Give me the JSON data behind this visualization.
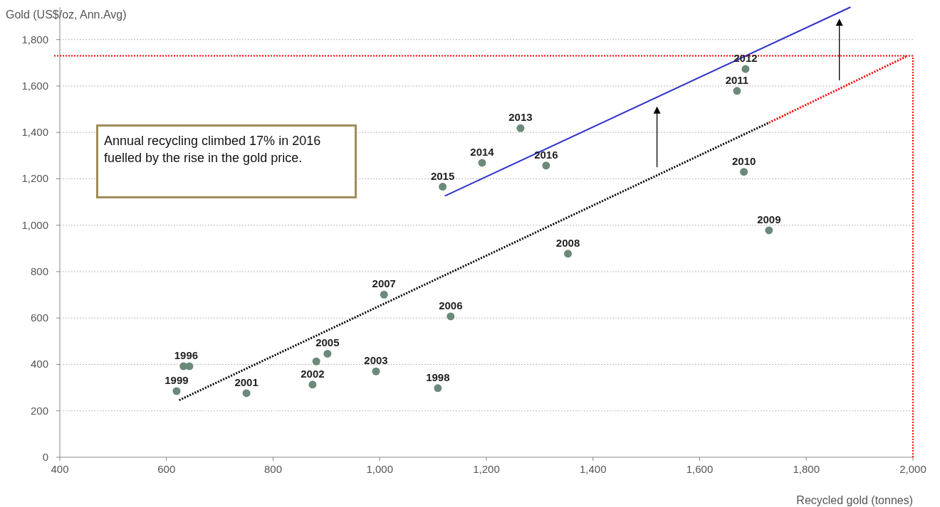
{
  "chart_data": {
    "type": "scatter",
    "xlabel": "Recycled gold (tonnes)",
    "ylabel": "Gold (US$/oz, Ann.Avg)",
    "xlim": [
      400,
      2000
    ],
    "xticks": [
      400,
      600,
      800,
      {
        "value": 1000,
        "label": "1,000"
      },
      {
        "value": 1200,
        "label": "1,200"
      },
      {
        "value": 1400,
        "label": "1,400"
      },
      {
        "value": 1600,
        "label": "1,600"
      },
      {
        "value": 1800,
        "label": "1,800"
      },
      {
        "value": 2000,
        "label": "2,000"
      }
    ],
    "ylim": [
      0,
      1940
    ],
    "yticks": [
      0,
      200,
      400,
      600,
      800,
      {
        "value": 1000,
        "label": "1,000"
      },
      {
        "value": 1200,
        "label": "1,200"
      },
      {
        "value": 1400,
        "label": "1,400"
      },
      {
        "value": 1600,
        "label": "1,600"
      },
      {
        "value": 1800,
        "label": "1,800"
      }
    ],
    "grid": "y",
    "series": [
      {
        "color": "#6b8a7a",
        "marker": "circle",
        "x": [
          632,
          643,
          1109,
          619,
          750,
          874,
          993,
          881,
          902,
          1133,
          1008,
          1353,
          1730,
          1683,
          1670,
          1686,
          1264,
          1192,
          1118,
          1312
        ],
        "values": [
          392,
          392,
          298,
          285,
          276,
          313,
          370,
          413,
          446,
          607,
          701,
          877,
          978,
          1230,
          1579,
          1673,
          1418,
          1269,
          1166,
          1257
        ]
      },
      {
        "type": "line",
        "color": "#000000",
        "line_style": "dotted",
        "x": [
          624,
          1730
        ],
        "values": [
          246,
          1442
        ]
      },
      {
        "type": "line",
        "color": "#ff0000",
        "line_style": "dotted",
        "x": [
          1730,
          1990
        ],
        "values": [
          1442,
          1730
        ]
      },
      {
        "type": "line",
        "color": "#3333cc",
        "line_style": "solid",
        "x": [
          1122,
          1883
        ],
        "values": [
          1126,
          1940
        ]
      }
    ],
    "ref_lines": [
      {
        "axis": "y",
        "value": 1730,
        "color": "#ff0000",
        "line_style": "dotted"
      },
      {
        "axis": "x",
        "value": 2000,
        "color": "#ff0000",
        "line_style": "dotted"
      }
    ],
    "annotations": [
      {
        "text": "1996",
        "x": 637,
        "y": 392
      },
      {
        "text": "1998",
        "x": 1109,
        "y": 298
      },
      {
        "text": "1999",
        "x": 619,
        "y": 285
      },
      {
        "text": "2001",
        "x": 750,
        "y": 276
      },
      {
        "text": "2002",
        "x": 874,
        "y": 313
      },
      {
        "text": "2003",
        "x": 993,
        "y": 370
      },
      {
        "text": "2005",
        "x": 902,
        "y": 446
      },
      {
        "text": "2006",
        "x": 1133,
        "y": 607
      },
      {
        "text": "2007",
        "x": 1008,
        "y": 701
      },
      {
        "text": "2008",
        "x": 1353,
        "y": 877
      },
      {
        "text": "2009",
        "x": 1730,
        "y": 978
      },
      {
        "text": "2010",
        "x": 1683,
        "y": 1230
      },
      {
        "text": "2011",
        "x": 1670,
        "y": 1579
      },
      {
        "text": "2012",
        "x": 1686,
        "y": 1673
      },
      {
        "text": "2013",
        "x": 1264,
        "y": 1418
      },
      {
        "text": "2014",
        "x": 1192,
        "y": 1269
      },
      {
        "text": "2015",
        "x": 1118,
        "y": 1166
      },
      {
        "text": "2016",
        "x": 1312,
        "y": 1257
      },
      "Annual recycling climbed 17% in 2016 fuelled by the rise in the gold price."
    ]
  }
}
